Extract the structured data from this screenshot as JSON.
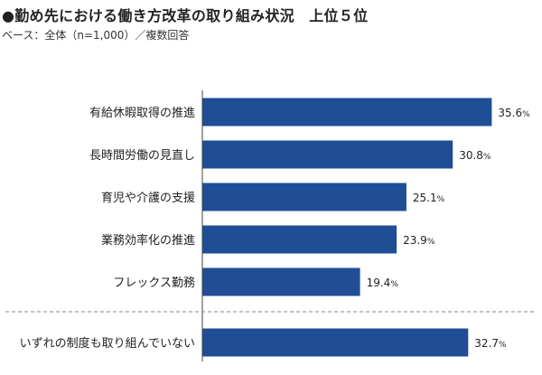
{
  "title": "●勤め先における働き方改革の取り組み状況　上位５位",
  "subtitle": "ベース：全体（n=1,000）／複数回答",
  "colors": {
    "bar": "#1f4e96",
    "axis": "#444444",
    "divider": "#888888"
  },
  "chart_data": {
    "type": "bar",
    "orientation": "horizontal",
    "title": "●勤め先における働き方改革の取り組み状況　上位５位",
    "subtitle": "ベース：全体（n=1,000）／複数回答",
    "unit": "%",
    "categories": [
      "有給休暇取得の推進",
      "長時間労働の見直し",
      "育児や介護の支援",
      "業務効率化の推進",
      "フレックス勤務",
      "いずれの制度も取り組んでいない"
    ],
    "values": [
      35.6,
      30.8,
      25.1,
      23.9,
      19.4,
      32.7
    ],
    "value_labels": [
      "35.6",
      "30.8",
      "25.1",
      "23.9",
      "19.4",
      "32.7"
    ],
    "xlim": [
      0,
      40
    ],
    "grid": false,
    "legend": "none",
    "separator_before_last": true
  }
}
